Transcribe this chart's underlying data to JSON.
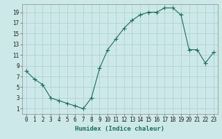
{
  "x": [
    0,
    1,
    2,
    3,
    4,
    5,
    6,
    7,
    8,
    9,
    10,
    11,
    12,
    13,
    14,
    15,
    16,
    17,
    18,
    19,
    20,
    21,
    22,
    23
  ],
  "y": [
    8,
    6.5,
    5.5,
    3,
    2.5,
    2,
    1.5,
    1,
    3,
    8.5,
    12,
    14,
    16,
    17.5,
    18.5,
    19,
    19,
    19.8,
    19.8,
    18.5,
    12,
    12,
    9.5,
    11.5
  ],
  "line_color": "#1a6b5e",
  "marker": "+",
  "marker_size": 4,
  "bg_color": "#cce8e8",
  "grid_color": "#aacece",
  "xlabel": "Humidex (Indice chaleur)",
  "xlim": [
    -0.5,
    23.5
  ],
  "ylim": [
    0,
    20.5
  ],
  "yticks": [
    1,
    3,
    5,
    7,
    9,
    11,
    13,
    15,
    17,
    19
  ],
  "xticks": [
    0,
    1,
    2,
    3,
    4,
    5,
    6,
    7,
    8,
    9,
    10,
    11,
    12,
    13,
    14,
    15,
    16,
    17,
    18,
    19,
    20,
    21,
    22,
    23
  ],
  "tick_fontsize": 5.5,
  "xlabel_fontsize": 6.5,
  "lw": 0.8
}
